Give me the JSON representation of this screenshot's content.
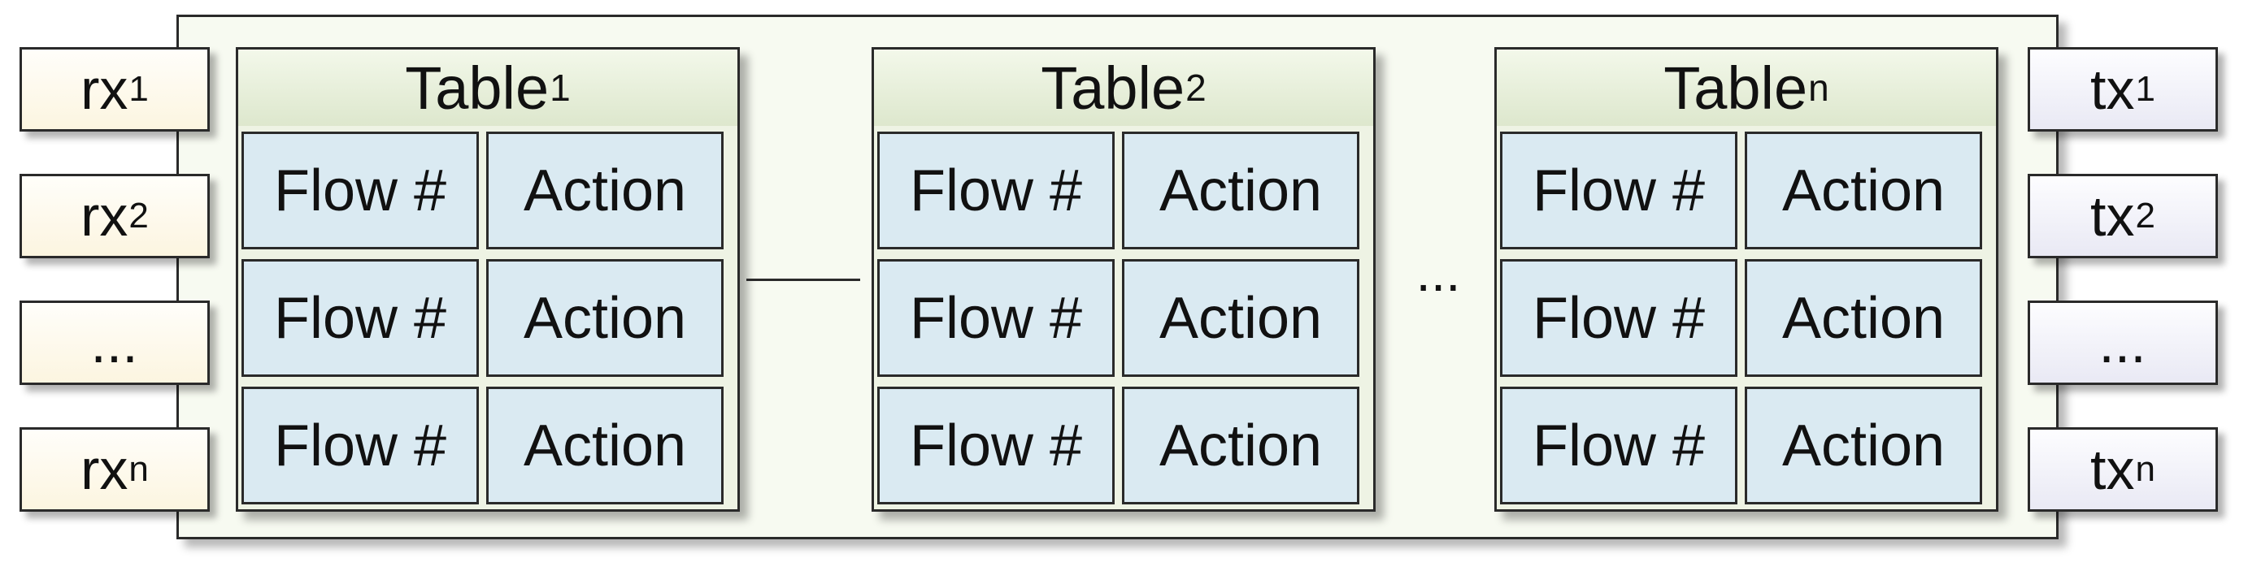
{
  "rx_ports": [
    {
      "main": "rx",
      "sub": "1"
    },
    {
      "main": "rx",
      "sub": "2"
    },
    {
      "main": "...",
      "sub": ""
    },
    {
      "main": "rx",
      "sub": "n"
    }
  ],
  "tx_ports": [
    {
      "main": "tx",
      "sub": "1"
    },
    {
      "main": "tx",
      "sub": "2"
    },
    {
      "main": "...",
      "sub": ""
    },
    {
      "main": "tx",
      "sub": "n"
    }
  ],
  "tables": [
    {
      "name": "Table",
      "sub": "1",
      "rows": [
        [
          "Flow #",
          "Action"
        ],
        [
          "Flow #",
          "Action"
        ],
        [
          "Flow #",
          "Action"
        ]
      ]
    },
    {
      "name": "Table",
      "sub": "2",
      "rows": [
        [
          "Flow #",
          "Action"
        ],
        [
          "Flow #",
          "Action"
        ],
        [
          "Flow #",
          "Action"
        ]
      ]
    },
    {
      "name": "Table",
      "sub": "n",
      "rows": [
        [
          "Flow #",
          "Action"
        ],
        [
          "Flow #",
          "Action"
        ],
        [
          "Flow #",
          "Action"
        ]
      ]
    }
  ],
  "between_tables_ellipsis": "..."
}
